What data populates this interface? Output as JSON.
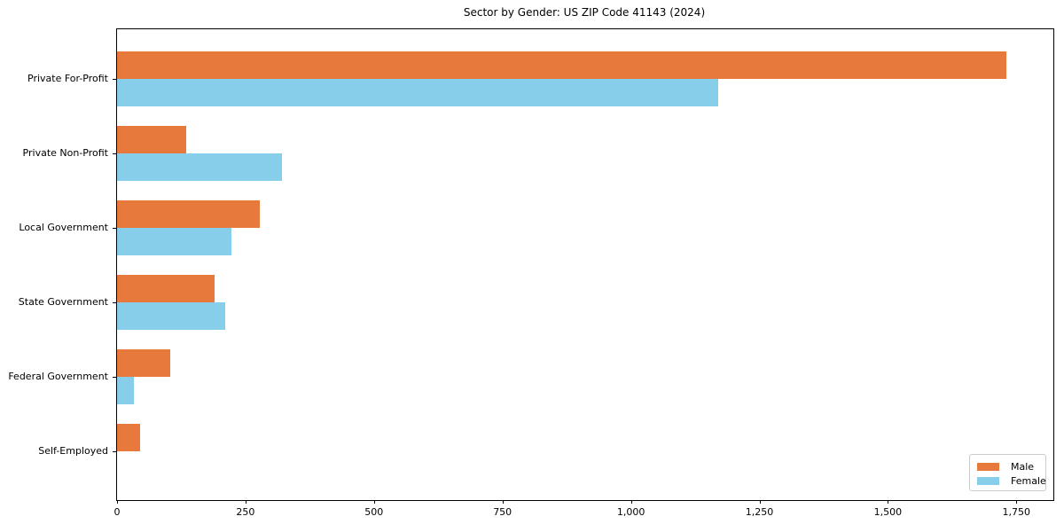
{
  "title": "Sector by Gender: US ZIP Code 41143 (2024)",
  "colors": {
    "male": "#E8793D",
    "female": "#87CEEB",
    "axis": "#000000",
    "legend_border": "#CCCCCC",
    "background": "#FFFFFF"
  },
  "legend": {
    "position": "lower right",
    "items": [
      {
        "label": "Male",
        "color": "#E8793D"
      },
      {
        "label": "Female",
        "color": "#87CEEB"
      }
    ]
  },
  "chart_data": {
    "type": "bar",
    "orientation": "horizontal",
    "title": "Sector by Gender: US ZIP Code 41143 (2024)",
    "categories": [
      "Private For-Profit",
      "Private Non-Profit",
      "Local Government",
      "State Government",
      "Federal Government",
      "Self-Employed"
    ],
    "series": [
      {
        "name": "Male",
        "color": "#E8793D",
        "values": [
          1730,
          135,
          277,
          190,
          103,
          45
        ]
      },
      {
        "name": "Female",
        "color": "#87CEEB",
        "values": [
          1170,
          320,
          223,
          210,
          33,
          0
        ]
      }
    ],
    "xlabel": "",
    "ylabel": "",
    "xlim": [
      0,
      1822
    ],
    "x_ticks": [
      0,
      250,
      500,
      750,
      1000,
      1250,
      1500,
      1750
    ],
    "x_tick_labels": [
      "0",
      "250",
      "500",
      "750",
      "1,000",
      "1,250",
      "1,500",
      "1,750"
    ],
    "grid": false,
    "legend_position": "lower right"
  }
}
